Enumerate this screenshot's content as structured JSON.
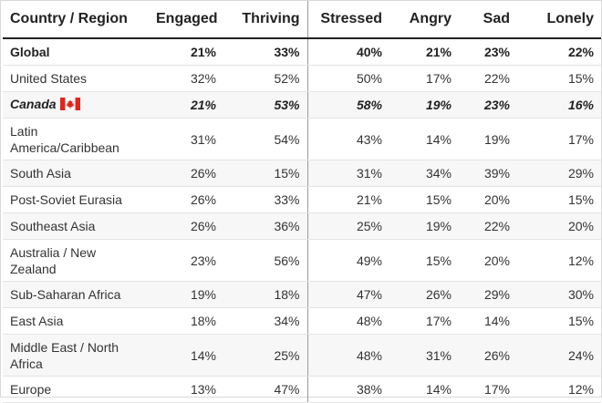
{
  "chart_data": {
    "type": "table",
    "columns": [
      "Country / Region",
      "Engaged",
      "Thriving",
      "Stressed",
      "Angry",
      "Sad",
      "Lonely"
    ],
    "rows": [
      {
        "region": "Global",
        "values": [
          "21%",
          "33%",
          "40%",
          "21%",
          "23%",
          "22%"
        ]
      },
      {
        "region": "United States",
        "values": [
          "32%",
          "52%",
          "50%",
          "17%",
          "22%",
          "15%"
        ]
      },
      {
        "region": "Canada",
        "values": [
          "21%",
          "53%",
          "58%",
          "19%",
          "23%",
          "16%"
        ]
      },
      {
        "region": "Latin America/Caribbean",
        "values": [
          "31%",
          "54%",
          "43%",
          "14%",
          "19%",
          "17%"
        ]
      },
      {
        "region": "South Asia",
        "values": [
          "26%",
          "15%",
          "31%",
          "34%",
          "39%",
          "29%"
        ]
      },
      {
        "region": "Post-Soviet Eurasia",
        "values": [
          "26%",
          "33%",
          "21%",
          "15%",
          "20%",
          "15%"
        ]
      },
      {
        "region": "Southeast Asia",
        "values": [
          "26%",
          "36%",
          "25%",
          "19%",
          "22%",
          "20%"
        ]
      },
      {
        "region": "Australia / New Zealand",
        "values": [
          "23%",
          "56%",
          "49%",
          "15%",
          "20%",
          "12%"
        ]
      },
      {
        "region": "Sub-Saharan Africa",
        "values": [
          "19%",
          "18%",
          "47%",
          "26%",
          "29%",
          "30%"
        ]
      },
      {
        "region": "East Asia",
        "values": [
          "18%",
          "34%",
          "48%",
          "17%",
          "14%",
          "15%"
        ]
      },
      {
        "region": "Middle East / North Africa",
        "values": [
          "14%",
          "25%",
          "48%",
          "31%",
          "26%",
          "24%"
        ]
      },
      {
        "region": "Europe",
        "values": [
          "13%",
          "47%",
          "38%",
          "14%",
          "17%",
          "12%"
        ]
      }
    ]
  },
  "colors": {
    "flag_red": "#e0261d",
    "text": "#333333",
    "header_rule": "#222222",
    "row_rule": "#e4e4e4",
    "shade": "#f7f7f7"
  },
  "icons": {
    "canada_flag": "canada-flag-icon"
  }
}
